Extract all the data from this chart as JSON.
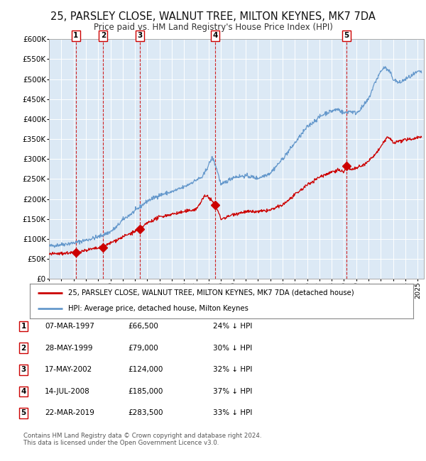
{
  "title": "25, PARSLEY CLOSE, WALNUT TREE, MILTON KEYNES, MK7 7DA",
  "subtitle": "Price paid vs. HM Land Registry's House Price Index (HPI)",
  "title_fontsize": 10.5,
  "subtitle_fontsize": 8.5,
  "background_color": "#dce9f5",
  "ylim": [
    0,
    600000
  ],
  "yticks": [
    0,
    50000,
    100000,
    150000,
    200000,
    250000,
    300000,
    350000,
    400000,
    450000,
    500000,
    550000,
    600000
  ],
  "xlim_start": 1995.0,
  "xlim_end": 2025.5,
  "sales": [
    {
      "date": 1997.18,
      "price": 66500,
      "label": "1"
    },
    {
      "date": 1999.41,
      "price": 79000,
      "label": "2"
    },
    {
      "date": 2002.37,
      "price": 124000,
      "label": "3"
    },
    {
      "date": 2008.53,
      "price": 185000,
      "label": "4"
    },
    {
      "date": 2019.22,
      "price": 283500,
      "label": "5"
    }
  ],
  "sale_line_color": "#cc0000",
  "hpi_line_color": "#6699cc",
  "legend_label_red": "25, PARSLEY CLOSE, WALNUT TREE, MILTON KEYNES, MK7 7DA (detached house)",
  "legend_label_blue": "HPI: Average price, detached house, Milton Keynes",
  "table_rows": [
    {
      "num": "1",
      "date": "07-MAR-1997",
      "price": "£66,500",
      "pct": "24% ↓ HPI"
    },
    {
      "num": "2",
      "date": "28-MAY-1999",
      "price": "£79,000",
      "pct": "30% ↓ HPI"
    },
    {
      "num": "3",
      "date": "17-MAY-2002",
      "price": "£124,000",
      "pct": "32% ↓ HPI"
    },
    {
      "num": "4",
      "date": "14-JUL-2008",
      "price": "£185,000",
      "pct": "37% ↓ HPI"
    },
    {
      "num": "5",
      "date": "22-MAR-2019",
      "price": "£283,500",
      "pct": "33% ↓ HPI"
    }
  ],
  "footer": "Contains HM Land Registry data © Crown copyright and database right 2024.\nThis data is licensed under the Open Government Licence v3.0."
}
